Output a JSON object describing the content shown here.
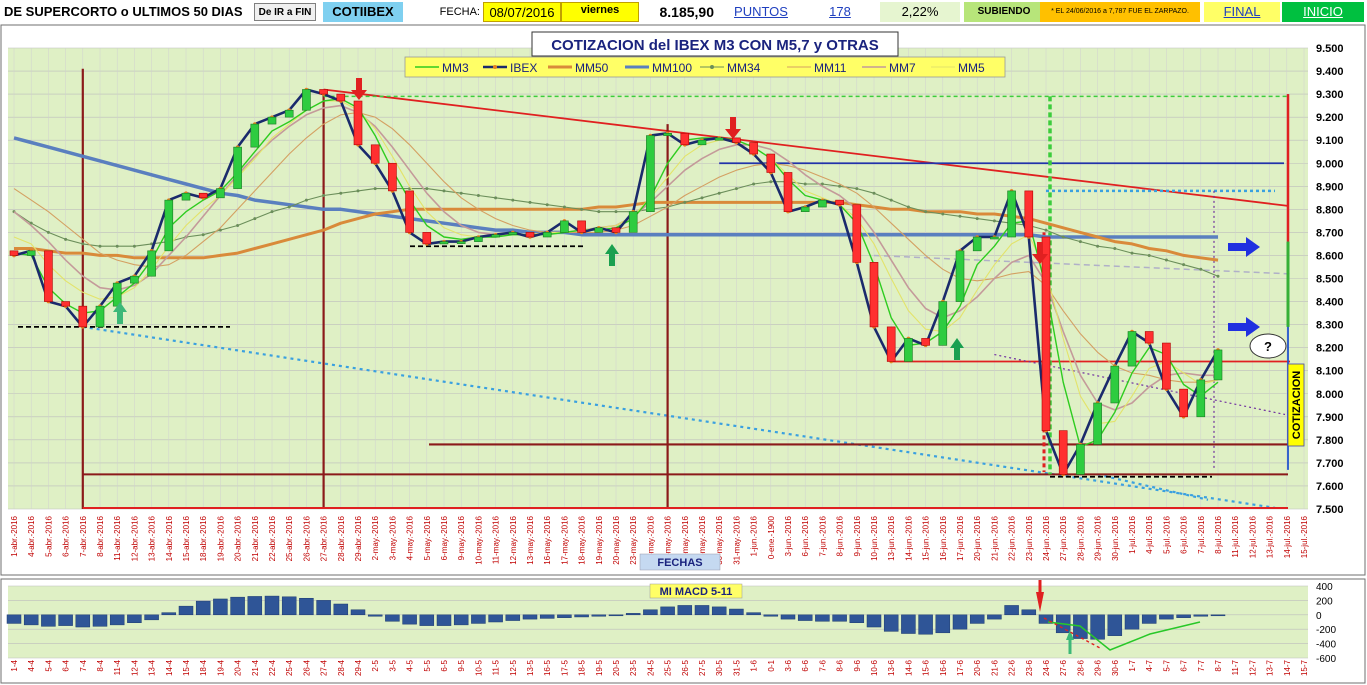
{
  "header": {
    "title": "DE SUPERCORTO o ULTIMOS 50 DIAS",
    "button_ir_fin": "De IR a FIN",
    "sheet_tab": "COTIIBEX",
    "fecha_label": "FECHA:",
    "fecha_value": "08/07/2016",
    "weekday": "viernes",
    "cotizacion": "8.185,90",
    "puntos_label": "PUNTOS",
    "puntos_value": "178",
    "percent": "2,22%",
    "status": "SUBIENDO",
    "note": "* EL 24/06/2016 a 7,787 FUE EL ZARPAZO.",
    "final_link": "FINAL",
    "inicio_link": "INICIO"
  },
  "colors": {
    "plot_bg": "#ebf7c9",
    "panel_bg": "#dff0c5",
    "ibex": "#1a2a6c",
    "mm3": "#2ecc1f",
    "mm50": "#d98a3a",
    "mm100": "#5a7fbf",
    "mm34": "#6b8e5a",
    "mm11": "#d4a062",
    "mm7": "#c49a9a",
    "mm5": "#e3e36a",
    "trend_red": "#e02020",
    "trend_blue": "#3aa0e0",
    "darkred": "#8b1a1a",
    "up_arrow": "#1aa050",
    "down_arrow": "#e02020",
    "blue_arrow": "#2030e0"
  },
  "chart_data": [
    {
      "type": "line",
      "title": "COTIZACION del IBEX M3 CON M5,7  y OTRAS",
      "xlabel": "FECHAS",
      "ylabel": "COTIZACION",
      "ylim": [
        7500,
        9500
      ],
      "yticks": [
        7500,
        7600,
        7700,
        7800,
        7900,
        8000,
        8100,
        8200,
        8300,
        8400,
        8500,
        8600,
        8700,
        8800,
        8900,
        9000,
        9100,
        9200,
        9300,
        9400,
        9500
      ],
      "ytick_labels": [
        "7.500",
        "7.600",
        "7.700",
        "7.800",
        "7.900",
        "8.000",
        "8.100",
        "8.200",
        "8.300",
        "8.400",
        "8.500",
        "8.600",
        "8.700",
        "8.800",
        "8.900",
        "9.000",
        "9.100",
        "9.200",
        "9.300",
        "9.400",
        "9.500"
      ],
      "grid": true,
      "legend_position": "top-left",
      "legend": [
        "MM3",
        "IBEX",
        "MM50",
        "MM100",
        "MM34",
        "MM11",
        "MM7",
        "MM5"
      ],
      "categories": [
        "1-abr.-2016",
        "4-abr.-2016",
        "5-abr.-2016",
        "6-abr.-2016",
        "7-abr.-2016",
        "8-abr.-2016",
        "11-abr.-2016",
        "12-abr.-2016",
        "13-abr.-2016",
        "14-abr.-2016",
        "15-abr.-2016",
        "18-abr.-2016",
        "19-abr.-2016",
        "20-abr.-2016",
        "21-abr.-2016",
        "22-abr.-2016",
        "25-abr.-2016",
        "26-abr.-2016",
        "27-abr.-2016",
        "28-abr.-2016",
        "29-abr.-2016",
        "2-may.-2016",
        "3-may.-2016",
        "4-may.-2016",
        "5-may.-2016",
        "6-may.-2016",
        "9-may.-2016",
        "10-may.-2016",
        "11-may.-2016",
        "12-may.-2016",
        "13-may.-2016",
        "16-may.-2016",
        "17-may.-2016",
        "18-may.-2016",
        "19-may.-2016",
        "20-may.-2016",
        "23-may.-2016",
        "24-may.-2016",
        "25-may.-2016",
        "26-may.-2016",
        "27-may.-2016",
        "30-may.-2016",
        "31-may.-2016",
        "1-jun.-2016",
        "0-ene.-1900",
        "3-jun.-2016",
        "6-jun.-2016",
        "7-jun.-2016",
        "8-jun.-2016",
        "9-jun.-2016",
        "10-jun.-2016",
        "13-jun.-2016",
        "14-jun.-2016",
        "15-jun.-2016",
        "16-jun.-2016",
        "17-jun.-2016",
        "20-jun.-2016",
        "21-jun.-2016",
        "22-jun.-2016",
        "23-jun.-2016",
        "24-jun.-2016",
        "27-jun.-2016",
        "28-jun.-2016",
        "29-jun.-2016",
        "30-jun.-2016",
        "1-jul.-2016",
        "4-jul.-2016",
        "5-jul.-2016",
        "6-jul.-2016",
        "7-jul.-2016",
        "8-jul.-2016",
        "11-jul.-2016",
        "12-jul.-2016",
        "13-jul.-2016",
        "14-jul.-2016",
        "15-jul.-2016"
      ],
      "series": [
        {
          "name": "IBEX",
          "values": [
            8600,
            8620,
            8400,
            8380,
            8290,
            8380,
            8480,
            8510,
            8620,
            8840,
            8870,
            8850,
            8890,
            9070,
            9170,
            9200,
            9230,
            9320,
            9300,
            9270,
            9080,
            9000,
            8880,
            8700,
            8650,
            8660,
            8660,
            8680,
            8690,
            8700,
            8680,
            8700,
            8750,
            8700,
            8720,
            8700,
            8790,
            9120,
            9130,
            9080,
            9100,
            9110,
            9090,
            9040,
            8960,
            8790,
            8810,
            8840,
            8820,
            8570,
            8290,
            8140,
            8240,
            8210,
            8400,
            8620,
            8680,
            8680,
            8880,
            8680,
            7840,
            7650,
            7780,
            7960,
            8120,
            8270,
            8220,
            8020,
            7900,
            8060,
            8190,
            null,
            null,
            null,
            null,
            null
          ]
        },
        {
          "name": "MM3",
          "values": [
            8610,
            8600,
            8460,
            8390,
            8350,
            8360,
            8420,
            8480,
            8580,
            8720,
            8790,
            8840,
            8880,
            8960,
            9050,
            9140,
            9180,
            9230,
            9270,
            9280,
            9240,
            9120,
            8970,
            8840,
            8730,
            8680,
            8670,
            8680,
            8680,
            8690,
            8690,
            8690,
            8700,
            8710,
            8710,
            8720,
            8760,
            8850,
            9000,
            9100,
            9110,
            9110,
            9100,
            9070,
            9020,
            8930,
            8860,
            8840,
            8820,
            8740,
            8560,
            8330,
            8210,
            8220,
            8270,
            8380,
            8560,
            8640,
            8740,
            8750,
            8460,
            8050,
            7770,
            7800,
            7920,
            8090,
            8200,
            8170,
            8040,
            7990,
            8050,
            null,
            null,
            null,
            null,
            null
          ]
        },
        {
          "name": "MM50",
          "values": [
            8630,
            8630,
            8620,
            8610,
            8610,
            8600,
            8600,
            8590,
            8590,
            8590,
            8590,
            8590,
            8600,
            8610,
            8630,
            8650,
            8670,
            8690,
            8710,
            8740,
            8760,
            8780,
            8790,
            8800,
            8800,
            8800,
            8800,
            8800,
            8800,
            8800,
            8800,
            8800,
            8800,
            8800,
            8810,
            8810,
            8820,
            8830,
            8830,
            8830,
            8830,
            8830,
            8830,
            8830,
            8830,
            8830,
            8830,
            8830,
            8830,
            8820,
            8810,
            8800,
            8800,
            8790,
            8790,
            8790,
            8780,
            8780,
            8770,
            8760,
            8740,
            8720,
            8700,
            8680,
            8660,
            8650,
            8630,
            8620,
            8600,
            8590,
            8580,
            null,
            null,
            null,
            null,
            null
          ]
        },
        {
          "name": "MM100",
          "values": [
            9110,
            9090,
            9070,
            9050,
            9030,
            9010,
            8990,
            8970,
            8950,
            8930,
            8910,
            8890,
            8870,
            8860,
            8840,
            8830,
            8820,
            8810,
            8800,
            8800,
            8790,
            8780,
            8770,
            8760,
            8750,
            8740,
            8730,
            8720,
            8710,
            8710,
            8700,
            8700,
            8700,
            8690,
            8690,
            8690,
            8690,
            8690,
            8690,
            8690,
            8690,
            8690,
            8690,
            8690,
            8690,
            8690,
            8690,
            8690,
            8690,
            8690,
            8690,
            8690,
            8690,
            8690,
            8690,
            8690,
            8690,
            8690,
            8690,
            8690,
            8680,
            8680,
            8680,
            8680,
            8680,
            8680,
            8680,
            8680,
            8680,
            8680,
            8680,
            null,
            null,
            null,
            null,
            null
          ]
        },
        {
          "name": "MM34",
          "values": [
            8790,
            8740,
            8700,
            8670,
            8650,
            8640,
            8640,
            8640,
            8650,
            8660,
            8680,
            8690,
            8710,
            8730,
            8760,
            8790,
            8810,
            8840,
            8860,
            8870,
            8880,
            8890,
            8890,
            8890,
            8890,
            8880,
            8870,
            8860,
            8850,
            8840,
            8830,
            8820,
            8810,
            8800,
            8790,
            8790,
            8790,
            8800,
            8810,
            8830,
            8850,
            8870,
            8890,
            8910,
            8920,
            8920,
            8910,
            8910,
            8900,
            8890,
            8870,
            8840,
            8810,
            8790,
            8780,
            8770,
            8760,
            8750,
            8740,
            8730,
            8710,
            8680,
            8660,
            8640,
            8630,
            8610,
            8600,
            8580,
            8560,
            8540,
            8510,
            null,
            null,
            null,
            null,
            null
          ]
        },
        {
          "name": "MM11",
          "values": [
            8890,
            8840,
            8790,
            8730,
            8670,
            8610,
            8580,
            8560,
            8550,
            8560,
            8600,
            8660,
            8720,
            8800,
            8880,
            8960,
            9040,
            9110,
            9170,
            9210,
            9220,
            9200,
            9150,
            9080,
            9000,
            8920,
            8850,
            8800,
            8760,
            8730,
            8710,
            8700,
            8700,
            8700,
            8700,
            8710,
            8730,
            8770,
            8810,
            8860,
            8900,
            8940,
            8970,
            8990,
            9000,
            8990,
            8970,
            8940,
            8910,
            8870,
            8810,
            8740,
            8670,
            8600,
            8540,
            8500,
            8490,
            8500,
            8520,
            8530,
            8470,
            8360,
            8260,
            8180,
            8120,
            8090,
            8080,
            8060,
            8050,
            8050,
            8060,
            null,
            null,
            null,
            null,
            null
          ]
        },
        {
          "name": "MM7",
          "values": [
            8790,
            8730,
            8660,
            8580,
            8510,
            8460,
            8450,
            8470,
            8520,
            8600,
            8680,
            8770,
            8860,
            8950,
            9030,
            9100,
            9160,
            9210,
            9240,
            9250,
            9220,
            9160,
            9070,
            8970,
            8870,
            8790,
            8730,
            8700,
            8690,
            8690,
            8690,
            8700,
            8700,
            8710,
            8720,
            8730,
            8770,
            8830,
            8900,
            8970,
            9020,
            9060,
            9080,
            9080,
            9060,
            9010,
            8950,
            8900,
            8860,
            8800,
            8700,
            8580,
            8460,
            8370,
            8330,
            8360,
            8420,
            8500,
            8570,
            8600,
            8480,
            8270,
            8080,
            7960,
            7930,
            7960,
            8030,
            8080,
            8090,
            8080,
            8080,
            null,
            null,
            null,
            null,
            null
          ]
        },
        {
          "name": "MM5",
          "values": [
            8680,
            8650,
            8560,
            8490,
            8440,
            8410,
            8420,
            8460,
            8540,
            8640,
            8730,
            8800,
            8860,
            8940,
            9020,
            9110,
            9170,
            9230,
            9270,
            9270,
            9230,
            9150,
            9030,
            8900,
            8790,
            8720,
            8690,
            8680,
            8690,
            8690,
            8690,
            8700,
            8700,
            8710,
            8720,
            8730,
            8770,
            8850,
            8940,
            9030,
            9080,
            9100,
            9100,
            9070,
            9020,
            8950,
            8880,
            8850,
            8820,
            8760,
            8650,
            8500,
            8360,
            8280,
            8270,
            8330,
            8450,
            8560,
            8650,
            8690,
            8530,
            8240,
            7990,
            7870,
            7880,
            7990,
            8110,
            8140,
            8090,
            8040,
            8060,
            null,
            null,
            null,
            null,
            null
          ]
        }
      ]
    },
    {
      "type": "bar",
      "title": "MI MACD 5-11",
      "ylim": [
        -600,
        400
      ],
      "yticks": [
        400,
        200,
        0,
        -200,
        -400,
        -600
      ],
      "categories": [
        "1-4",
        "4-4",
        "5-4",
        "6-4",
        "7-4",
        "8-4",
        "11-4",
        "12-4",
        "13-4",
        "14-4",
        "15-4",
        "18-4",
        "19-4",
        "20-4",
        "21-4",
        "22-4",
        "25-4",
        "26-4",
        "27-4",
        "28-4",
        "29-4",
        "2-5",
        "3-5",
        "4-5",
        "5-5",
        "6-5",
        "9-5",
        "10-5",
        "11-5",
        "12-5",
        "13-5",
        "16-5",
        "17-5",
        "18-5",
        "19-5",
        "20-5",
        "23-5",
        "24-5",
        "25-5",
        "26-5",
        "27-5",
        "30-5",
        "31-5",
        "1-6",
        "0-1",
        "3-6",
        "6-6",
        "7-6",
        "8-6",
        "9-6",
        "10-6",
        "13-6",
        "14-6",
        "15-6",
        "16-6",
        "17-6",
        "20-6",
        "21-6",
        "22-6",
        "23-6",
        "24-6",
        "27-6",
        "28-6",
        "29-6",
        "30-6",
        "1-7",
        "4-7",
        "5-7",
        "6-7",
        "7-7",
        "8-7",
        "11-7",
        "12-7",
        "13-7",
        "14-7",
        "15-7"
      ],
      "values": [
        -120,
        -140,
        -160,
        -150,
        -170,
        -160,
        -140,
        -110,
        -70,
        30,
        120,
        190,
        220,
        245,
        255,
        260,
        250,
        230,
        200,
        150,
        70,
        -20,
        -90,
        -130,
        -150,
        -150,
        -140,
        -120,
        -100,
        -80,
        -60,
        -50,
        -40,
        -30,
        -20,
        -10,
        20,
        70,
        110,
        130,
        130,
        110,
        80,
        30,
        -20,
        -60,
        -80,
        -90,
        -90,
        -110,
        -170,
        -230,
        -260,
        -270,
        -250,
        -200,
        -120,
        -60,
        130,
        70,
        -120,
        -250,
        -330,
        -340,
        -290,
        -200,
        -120,
        -60,
        -40,
        -20,
        -10,
        null,
        null,
        null,
        null,
        null
      ]
    }
  ]
}
